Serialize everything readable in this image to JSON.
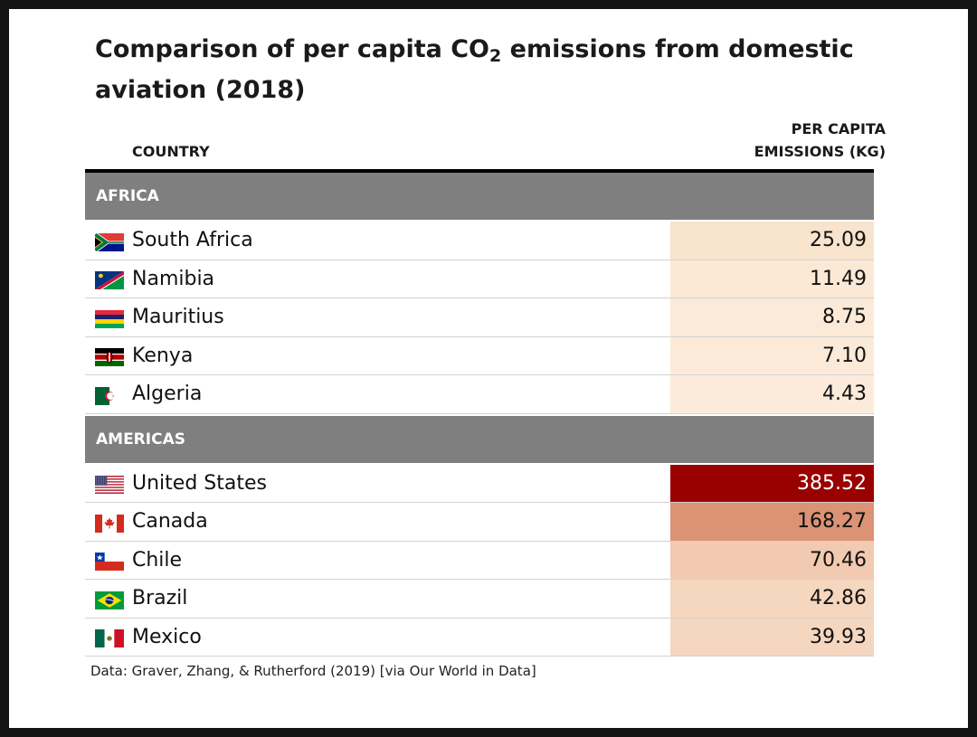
{
  "title_pre": "Comparison of per capita CO",
  "title_sub": "2",
  "title_post": " emissions from domestic aviation (2018)",
  "header": {
    "country": "COUNTRY",
    "value_line1": "PER CAPITA",
    "value_line2": "EMISSIONS (KG)"
  },
  "source": "Data: Graver, Zhang, & Rutherford (2019) [via Our World in Data]",
  "colors": {
    "group_header": "#7f7f7f",
    "low": "#fbeadb",
    "high": "#990000"
  },
  "chart_data": {
    "type": "table",
    "columns": [
      "COUNTRY",
      "PER CAPITA EMISSIONS (KG)"
    ],
    "groups": [
      {
        "name": "AFRICA",
        "rows": [
          {
            "country": "South Africa",
            "value": "25.09",
            "flag": "south-africa",
            "color": "#f8e3cd"
          },
          {
            "country": "Namibia",
            "value": "11.49",
            "flag": "namibia",
            "color": "#fbe9d6"
          },
          {
            "country": "Mauritius",
            "value": "8.75",
            "flag": "mauritius",
            "color": "#fbead8"
          },
          {
            "country": "Kenya",
            "value": "7.10",
            "flag": "kenya",
            "color": "#fbead8"
          },
          {
            "country": "Algeria",
            "value": "4.43",
            "flag": "algeria",
            "color": "#fcebdb"
          }
        ]
      },
      {
        "name": "AMERICAS",
        "rows": [
          {
            "country": "United States",
            "value": "385.52",
            "flag": "united-states",
            "color": "#990000"
          },
          {
            "country": "Canada",
            "value": "168.27",
            "flag": "canada",
            "color": "#dc9275"
          },
          {
            "country": "Chile",
            "value": "70.46",
            "flag": "chile",
            "color": "#f2cab1"
          },
          {
            "country": "Brazil",
            "value": "42.86",
            "flag": "brazil",
            "color": "#f5d6be"
          },
          {
            "country": "Mexico",
            "value": "39.93",
            "flag": "mexico",
            "color": "#f5d7c0"
          }
        ]
      }
    ]
  }
}
